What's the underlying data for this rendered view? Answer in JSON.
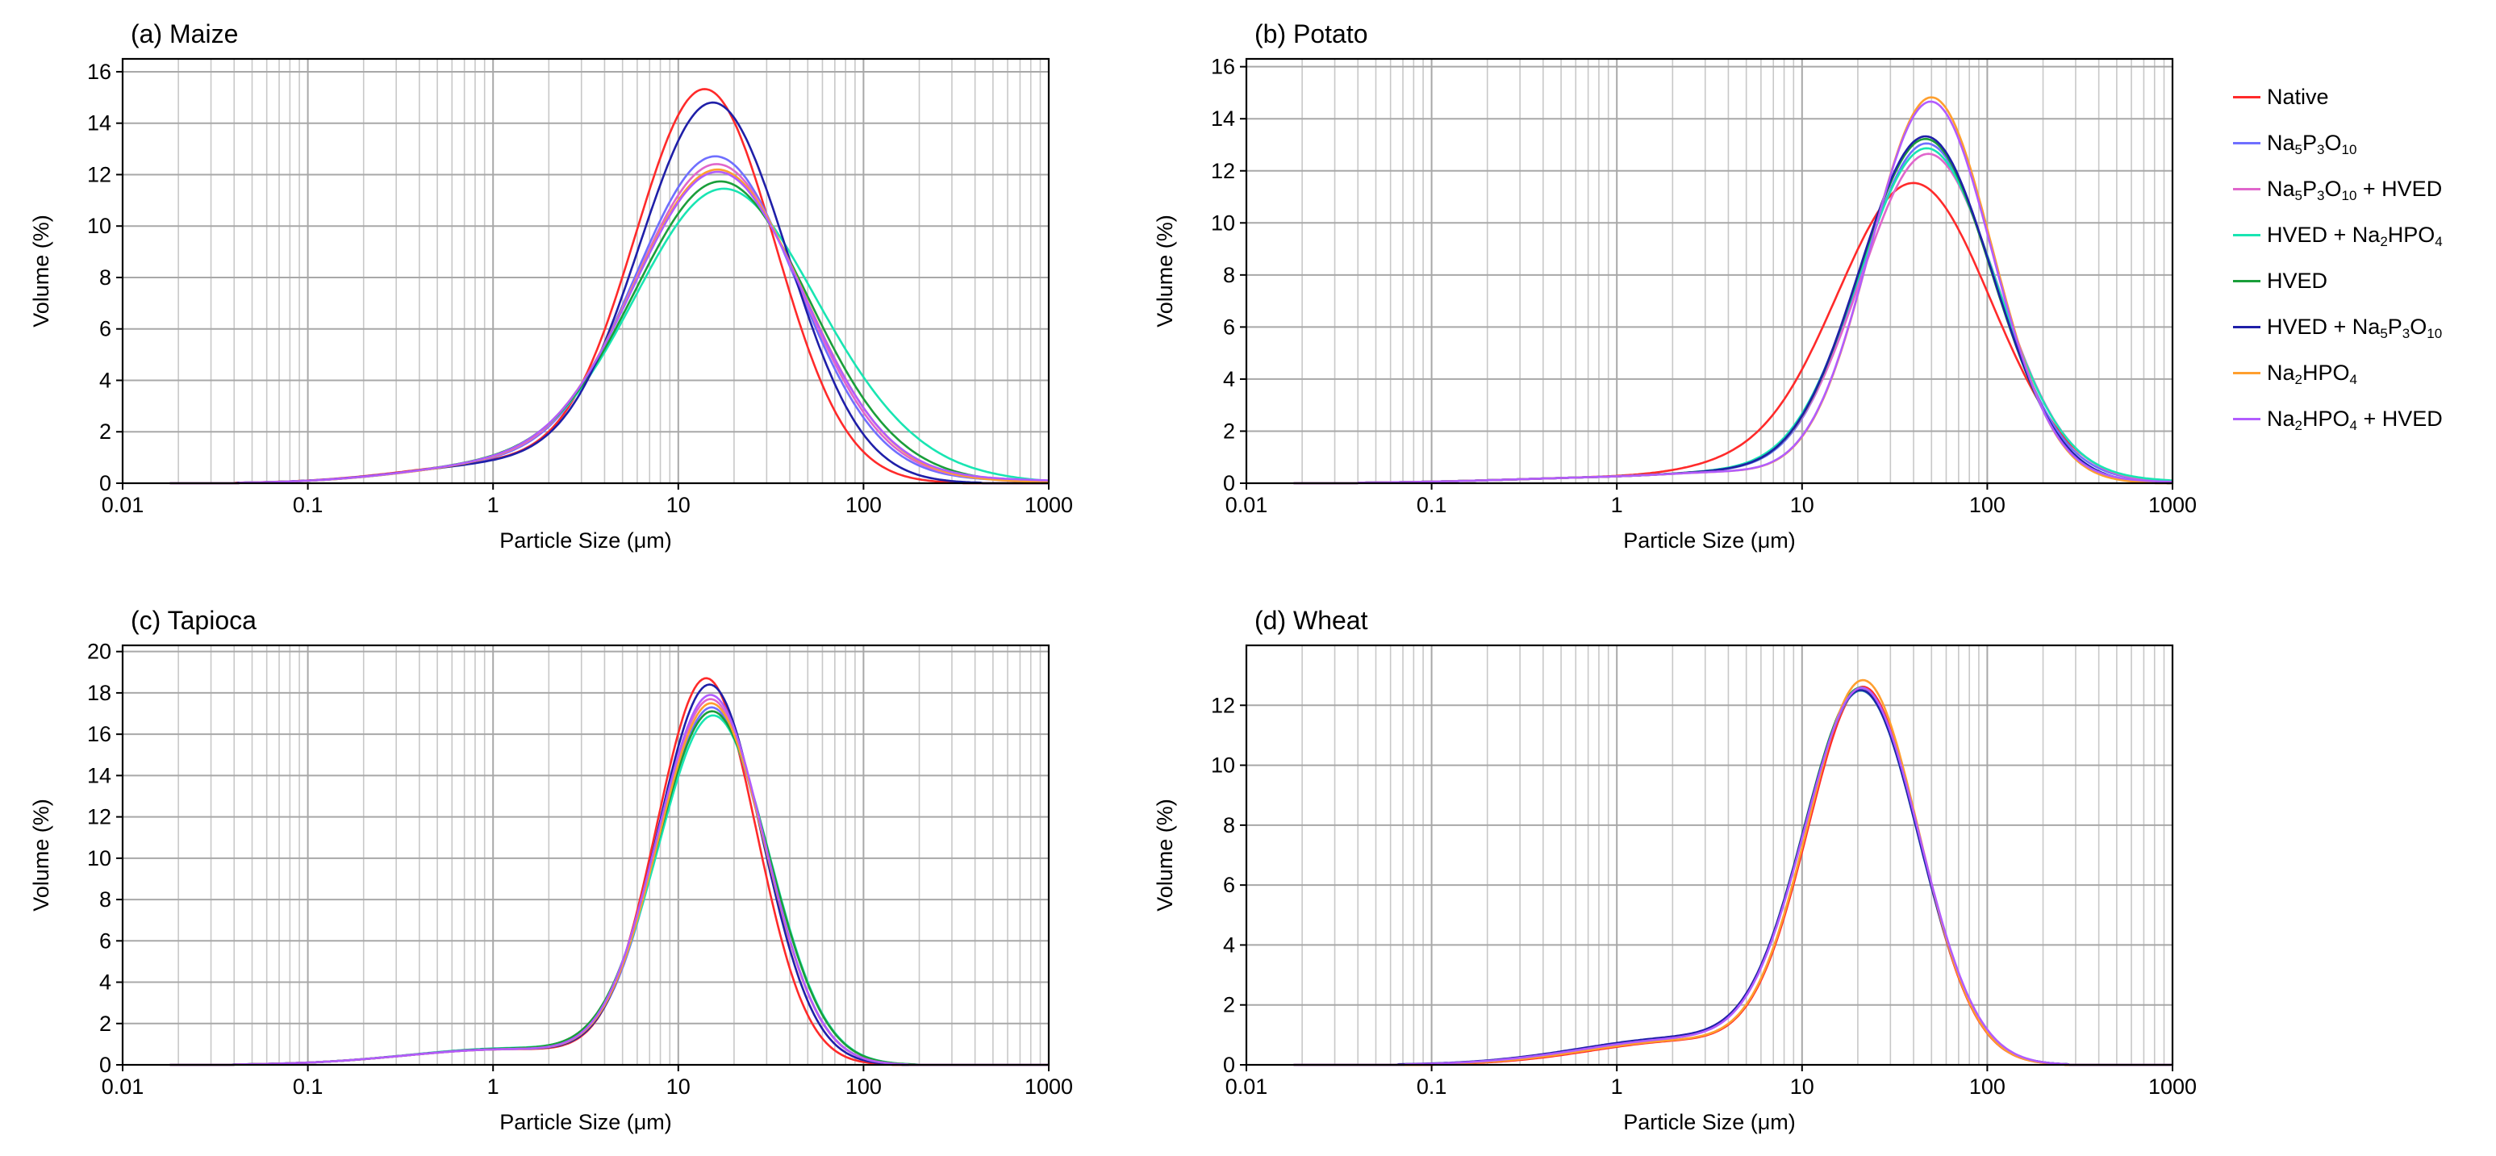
{
  "legend": {
    "items": [
      {
        "key": "native",
        "label": "Native",
        "color": "#ff2a2a"
      },
      {
        "key": "stpp",
        "label": "Na5P3O10",
        "color": "#6f6fff"
      },
      {
        "key": "stpp_hved",
        "label": "Na5P3O10 + HVED",
        "color": "#e066cc"
      },
      {
        "key": "hved_dsp",
        "label": "HVED + Na2HPO4",
        "color": "#19e5b2"
      },
      {
        "key": "hved",
        "label": "HVED",
        "color": "#1a9e3a"
      },
      {
        "key": "hved_stpp",
        "label": "HVED + Na5P3O10",
        "color": "#1f1fa8"
      },
      {
        "key": "dsp",
        "label": "Na2HPO4",
        "color": "#ff9f2e"
      },
      {
        "key": "dsp_hved",
        "label": "Na2HPO4 + HVED",
        "color": "#b25cff"
      }
    ]
  },
  "chart_data": [
    {
      "type": "line",
      "id": "maize",
      "title": "(a) Maize",
      "xscale": "log",
      "xlim": [
        0.01,
        1000
      ],
      "xticks": [
        0.01,
        0.1,
        1,
        10,
        100,
        1000
      ],
      "xtick_labels": [
        "0.01",
        "0.1",
        "1",
        "10",
        "100",
        "1000"
      ],
      "ylim": [
        0,
        16.5
      ],
      "yticks": [
        0,
        2,
        4,
        6,
        8,
        10,
        12,
        14,
        16
      ],
      "xlabel": "Particle Size (μm)",
      "ylabel": "Volume (%)",
      "grid": true,
      "x_start": 0.018,
      "series": [
        {
          "key": "native",
          "components": [
            {
              "a": 0.78,
              "mu": 1.25,
              "s": 0.55
            },
            {
              "a": 15.2,
              "mu": 14,
              "s": 0.38
            }
          ]
        },
        {
          "key": "stpp",
          "components": [
            {
              "a": 0.72,
              "mu": 1.25,
              "s": 0.55
            },
            {
              "a": 12.6,
              "mu": 16,
              "s": 0.44
            },
            {
              "a": 0.12,
              "mu": 250,
              "s": 0.6
            }
          ]
        },
        {
          "key": "stpp_hved",
          "components": [
            {
              "a": 0.72,
              "mu": 1.25,
              "s": 0.55
            },
            {
              "a": 12.3,
              "mu": 16.3,
              "s": 0.45
            },
            {
              "a": 0.12,
              "mu": 250,
              "s": 0.6
            }
          ]
        },
        {
          "key": "hved_dsp",
          "components": [
            {
              "a": 0.7,
              "mu": 1.25,
              "s": 0.55
            },
            {
              "a": 11.3,
              "mu": 17.5,
              "s": 0.48
            },
            {
              "a": 0.85,
              "mu": 105,
              "s": 0.35
            },
            {
              "a": 0.15,
              "mu": 400,
              "s": 0.3
            }
          ]
        },
        {
          "key": "hved",
          "components": [
            {
              "a": 0.72,
              "mu": 1.25,
              "s": 0.55
            },
            {
              "a": 11.6,
              "mu": 17,
              "s": 0.47
            },
            {
              "a": 0.25,
              "mu": 110,
              "s": 0.45
            }
          ]
        },
        {
          "key": "hved_stpp",
          "components": [
            {
              "a": 0.74,
              "mu": 1.25,
              "s": 0.55
            },
            {
              "a": 14.7,
              "mu": 15.5,
              "s": 0.4
            }
          ]
        },
        {
          "key": "dsp",
          "components": [
            {
              "a": 0.7,
              "mu": 1.25,
              "s": 0.55
            },
            {
              "a": 12.1,
              "mu": 16.5,
              "s": 0.46
            },
            {
              "a": 0.1,
              "mu": 200,
              "s": 0.5
            }
          ]
        },
        {
          "key": "dsp_hved",
          "components": [
            {
              "a": 0.72,
              "mu": 1.25,
              "s": 0.55
            },
            {
              "a": 12.0,
              "mu": 16.5,
              "s": 0.46
            },
            {
              "a": 0.15,
              "mu": 300,
              "s": 0.6
            }
          ]
        }
      ]
    },
    {
      "type": "line",
      "id": "potato",
      "title": "(b) Potato",
      "xscale": "log",
      "xlim": [
        0.01,
        1000
      ],
      "xticks": [
        0.01,
        0.1,
        1,
        10,
        100,
        1000
      ],
      "xtick_labels": [
        "0.01",
        "0.1",
        "1",
        "10",
        "100",
        "1000"
      ],
      "ylim": [
        0,
        16.3
      ],
      "yticks": [
        0,
        2,
        4,
        6,
        8,
        10,
        12,
        14,
        16
      ],
      "xlabel": "Particle Size (μm)",
      "ylabel": "Volume (%)",
      "grid": true,
      "x_start": 0.018,
      "series": [
        {
          "key": "native",
          "components": [
            {
              "a": 0.25,
              "mu": 1.5,
              "s": 0.7
            },
            {
              "a": 0.3,
              "mu": 4.2,
              "s": 0.3
            },
            {
              "a": 11.5,
              "mu": 40,
              "s": 0.42
            }
          ]
        },
        {
          "key": "stpp",
          "components": [
            {
              "a": 0.25,
              "mu": 1.5,
              "s": 0.7
            },
            {
              "a": 0.2,
              "mu": 4.2,
              "s": 0.3
            },
            {
              "a": 13.0,
              "mu": 47,
              "s": 0.36
            },
            {
              "a": 0.12,
              "mu": 280,
              "s": 0.45
            }
          ]
        },
        {
          "key": "stpp_hved",
          "components": [
            {
              "a": 0.25,
              "mu": 1.5,
              "s": 0.7
            },
            {
              "a": 0.2,
              "mu": 4.2,
              "s": 0.3
            },
            {
              "a": 12.6,
              "mu": 48,
              "s": 0.37
            },
            {
              "a": 0.1,
              "mu": 260,
              "s": 0.45
            }
          ]
        },
        {
          "key": "hved_dsp",
          "components": [
            {
              "a": 0.25,
              "mu": 1.5,
              "s": 0.7
            },
            {
              "a": 0.2,
              "mu": 4.2,
              "s": 0.3
            },
            {
              "a": 12.8,
              "mu": 47,
              "s": 0.37
            },
            {
              "a": 0.15,
              "mu": 300,
              "s": 0.5
            }
          ]
        },
        {
          "key": "hved",
          "components": [
            {
              "a": 0.25,
              "mu": 1.5,
              "s": 0.7
            },
            {
              "a": 0.2,
              "mu": 4.2,
              "s": 0.3
            },
            {
              "a": 13.2,
              "mu": 46.5,
              "s": 0.36
            }
          ]
        },
        {
          "key": "hved_stpp",
          "components": [
            {
              "a": 0.25,
              "mu": 1.5,
              "s": 0.7
            },
            {
              "a": 0.2,
              "mu": 4.2,
              "s": 0.3
            },
            {
              "a": 13.3,
              "mu": 46.5,
              "s": 0.36
            }
          ]
        },
        {
          "key": "dsp",
          "components": [
            {
              "a": 0.25,
              "mu": 1.5,
              "s": 0.7
            },
            {
              "a": 0.2,
              "mu": 4.2,
              "s": 0.3
            },
            {
              "a": 14.8,
              "mu": 50,
              "s": 0.33
            }
          ]
        },
        {
          "key": "dsp_hved",
          "components": [
            {
              "a": 0.25,
              "mu": 1.5,
              "s": 0.7
            },
            {
              "a": 0.2,
              "mu": 4.2,
              "s": 0.3
            },
            {
              "a": 14.6,
              "mu": 49.5,
              "s": 0.33
            },
            {
              "a": 0.1,
              "mu": 250,
              "s": 0.5
            }
          ]
        }
      ]
    },
    {
      "type": "line",
      "id": "tapioca",
      "title": "(c) Tapioca",
      "xscale": "log",
      "xlim": [
        0.01,
        1000
      ],
      "xticks": [
        0.01,
        0.1,
        1,
        10,
        100,
        1000
      ],
      "xtick_labels": [
        "0.01",
        "0.1",
        "1",
        "10",
        "100",
        "1000"
      ],
      "ylim": [
        0,
        20.3
      ],
      "yticks": [
        0,
        2,
        4,
        6,
        8,
        10,
        12,
        14,
        16,
        18,
        20
      ],
      "xlabel": "Particle Size (μm)",
      "ylabel": "Volume (%)",
      "grid": true,
      "x_start": 0.018,
      "series": [
        {
          "key": "native",
          "components": [
            {
              "a": 0.75,
              "mu": 1.2,
              "s": 0.55
            },
            {
              "a": 18.6,
              "mu": 14.2,
              "s": 0.27
            }
          ]
        },
        {
          "key": "stpp",
          "components": [
            {
              "a": 0.75,
              "mu": 1.2,
              "s": 0.55
            },
            {
              "a": 17.2,
              "mu": 15.2,
              "s": 0.29
            }
          ]
        },
        {
          "key": "stpp_hved",
          "components": [
            {
              "a": 0.75,
              "mu": 1.2,
              "s": 0.55
            },
            {
              "a": 17.6,
              "mu": 15,
              "s": 0.29
            }
          ]
        },
        {
          "key": "hved_dsp",
          "components": [
            {
              "a": 0.8,
              "mu": 1.25,
              "s": 0.55
            },
            {
              "a": 16.8,
              "mu": 15.5,
              "s": 0.3
            }
          ]
        },
        {
          "key": "hved",
          "components": [
            {
              "a": 0.78,
              "mu": 1.25,
              "s": 0.55
            },
            {
              "a": 17.0,
              "mu": 15.3,
              "s": 0.3
            }
          ]
        },
        {
          "key": "hved_stpp",
          "components": [
            {
              "a": 0.76,
              "mu": 1.2,
              "s": 0.55
            },
            {
              "a": 18.3,
              "mu": 14.8,
              "s": 0.28
            }
          ]
        },
        {
          "key": "dsp",
          "components": [
            {
              "a": 0.75,
              "mu": 1.2,
              "s": 0.55
            },
            {
              "a": 17.4,
              "mu": 15.1,
              "s": 0.29
            }
          ]
        },
        {
          "key": "dsp_hved",
          "components": [
            {
              "a": 0.75,
              "mu": 1.2,
              "s": 0.55
            },
            {
              "a": 17.8,
              "mu": 15,
              "s": 0.29
            }
          ]
        }
      ]
    },
    {
      "type": "line",
      "id": "wheat",
      "title": "(d) Wheat",
      "xscale": "log",
      "xlim": [
        0.01,
        1000
      ],
      "xticks": [
        0.01,
        0.1,
        1,
        10,
        100,
        1000
      ],
      "xtick_labels": [
        "0.01",
        "0.1",
        "1",
        "10",
        "100",
        "1000"
      ],
      "ylim": [
        0,
        14
      ],
      "yticks": [
        0,
        2,
        4,
        6,
        8,
        10,
        12
      ],
      "xlabel": "Particle Size (μm)",
      "ylabel": "Volume (%)",
      "grid": true,
      "x_start": 0.018,
      "series": [
        {
          "key": "native",
          "components": [
            {
              "a": 0.78,
              "mu": 2.3,
              "s": 0.5
            },
            {
              "a": 12.5,
              "mu": 21.5,
              "s": 0.3
            }
          ]
        },
        {
          "key": "stpp",
          "components": [
            {
              "a": 0.85,
              "mu": 2.3,
              "s": 0.55
            },
            {
              "a": 12.4,
              "mu": 21,
              "s": 0.31
            }
          ]
        },
        {
          "key": "stpp_hved",
          "components": [
            {
              "a": 0.85,
              "mu": 2.3,
              "s": 0.55
            },
            {
              "a": 12.3,
              "mu": 21,
              "s": 0.31
            }
          ]
        },
        {
          "key": "hved_dsp",
          "components": [
            {
              "a": 0.88,
              "mu": 2.3,
              "s": 0.55
            },
            {
              "a": 12.3,
              "mu": 21,
              "s": 0.31
            }
          ]
        },
        {
          "key": "hved",
          "components": [
            {
              "a": 0.88,
              "mu": 2.3,
              "s": 0.55
            },
            {
              "a": 12.4,
              "mu": 21,
              "s": 0.31
            }
          ]
        },
        {
          "key": "hved_stpp",
          "components": [
            {
              "a": 0.9,
              "mu": 2.3,
              "s": 0.56
            },
            {
              "a": 12.3,
              "mu": 21,
              "s": 0.31
            }
          ]
        },
        {
          "key": "dsp",
          "components": [
            {
              "a": 0.8,
              "mu": 2.3,
              "s": 0.52
            },
            {
              "a": 12.7,
              "mu": 21.5,
              "s": 0.3
            }
          ]
        },
        {
          "key": "dsp_hved",
          "components": [
            {
              "a": 0.85,
              "mu": 2.3,
              "s": 0.55
            },
            {
              "a": 12.4,
              "mu": 21.2,
              "s": 0.31
            }
          ]
        }
      ]
    }
  ]
}
